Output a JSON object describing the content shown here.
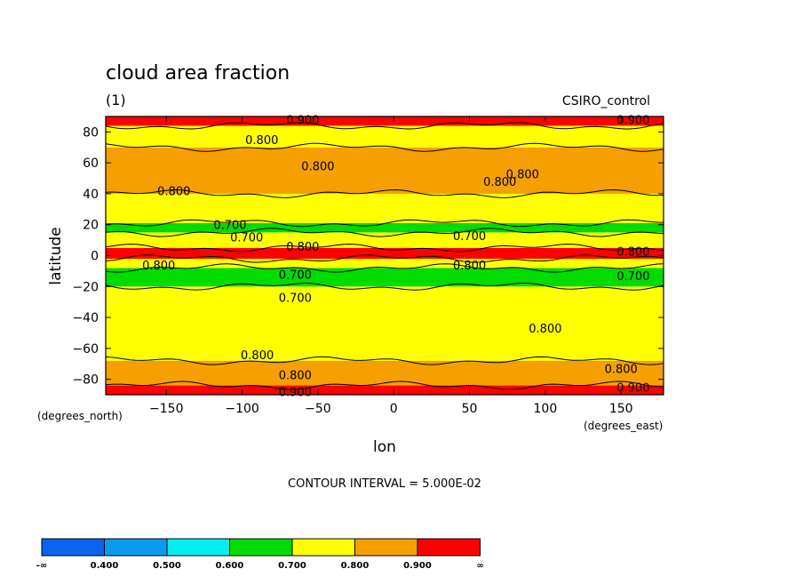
{
  "chart_data": {
    "type": "heatmap",
    "title": "cloud area fraction",
    "subtitle_left": "(1)",
    "subtitle_right": "CSIRO_control",
    "xlabel": "lon",
    "ylabel": "latitude",
    "x_units": "(degrees_east)",
    "y_units": "(degrees_north)",
    "xlim": [
      -190,
      178
    ],
    "ylim": [
      -90,
      90
    ],
    "x_ticks": [
      -150,
      -100,
      -50,
      0,
      50,
      100,
      150
    ],
    "y_ticks": [
      -80,
      -60,
      -40,
      -20,
      0,
      20,
      40,
      60,
      80
    ],
    "contour_interval_text": "CONTOUR INTERVAL = 5.000E-02",
    "colorbar": {
      "levels": [
        "-∞",
        "0.400",
        "0.500",
        "0.600",
        "0.700",
        "0.800",
        "0.900",
        "∞"
      ],
      "colors": [
        "#0a64f0",
        "#0a9bf0",
        "#00f0f0",
        "#00dc00",
        "#ffff00",
        "#f5a000",
        "#ff0000"
      ]
    },
    "bands": [
      {
        "lat": [
          -90,
          -84
        ],
        "color": "#ff0000",
        "level": 0.9
      },
      {
        "lat": [
          -84,
          -68
        ],
        "color": "#f5a000",
        "level": 0.85
      },
      {
        "lat": [
          -68,
          -20
        ],
        "color": "#ffff00",
        "level": 0.75
      },
      {
        "lat": [
          -20,
          -8
        ],
        "color": "#00dc00",
        "level": 0.65
      },
      {
        "lat": [
          -8,
          -2
        ],
        "color": "#ffff00",
        "level": 0.75
      },
      {
        "lat": [
          -2,
          5
        ],
        "color": "#ff0000",
        "level": 0.9
      },
      {
        "lat": [
          5,
          15
        ],
        "color": "#ffff00",
        "level": 0.75
      },
      {
        "lat": [
          15,
          21
        ],
        "color": "#00dc00",
        "level": 0.65
      },
      {
        "lat": [
          21,
          40
        ],
        "color": "#ffff00",
        "level": 0.75
      },
      {
        "lat": [
          40,
          70
        ],
        "color": "#f5a000",
        "level": 0.85
      },
      {
        "lat": [
          70,
          84
        ],
        "color": "#ffff00",
        "level": 0.75
      },
      {
        "lat": [
          84,
          90
        ],
        "color": "#ff0000",
        "level": 0.9
      }
    ],
    "contour_labels": [
      {
        "text": "0.900",
        "lon": -60,
        "lat": 88
      },
      {
        "text": "0.900",
        "lon": 158,
        "lat": 88
      },
      {
        "text": "0.800",
        "lon": -87,
        "lat": 75
      },
      {
        "text": "0.800",
        "lon": -50,
        "lat": 58
      },
      {
        "text": "0.800",
        "lon": 85,
        "lat": 53
      },
      {
        "text": "0.800",
        "lon": 70,
        "lat": 48
      },
      {
        "text": "0.800",
        "lon": -145,
        "lat": 42
      },
      {
        "text": "0.700",
        "lon": -108,
        "lat": 20
      },
      {
        "text": "0.700",
        "lon": -97,
        "lat": 12
      },
      {
        "text": "0.700",
        "lon": 50,
        "lat": 13
      },
      {
        "text": "0.800",
        "lon": -60,
        "lat": 6
      },
      {
        "text": "0.800",
        "lon": 158,
        "lat": 3
      },
      {
        "text": "0.800",
        "lon": -155,
        "lat": -6
      },
      {
        "text": "0.700",
        "lon": -65,
        "lat": -12
      },
      {
        "text": "0.800",
        "lon": 50,
        "lat": -6
      },
      {
        "text": "0.700",
        "lon": 158,
        "lat": -13
      },
      {
        "text": "0.700",
        "lon": -65,
        "lat": -27
      },
      {
        "text": "0.800",
        "lon": 100,
        "lat": -47
      },
      {
        "text": "0.800",
        "lon": -90,
        "lat": -64
      },
      {
        "text": "0.800",
        "lon": -65,
        "lat": -77
      },
      {
        "text": "0.800",
        "lon": 150,
        "lat": -73
      },
      {
        "text": "0.900",
        "lon": -65,
        "lat": -88
      },
      {
        "text": "0.900",
        "lon": 158,
        "lat": -85
      }
    ]
  }
}
